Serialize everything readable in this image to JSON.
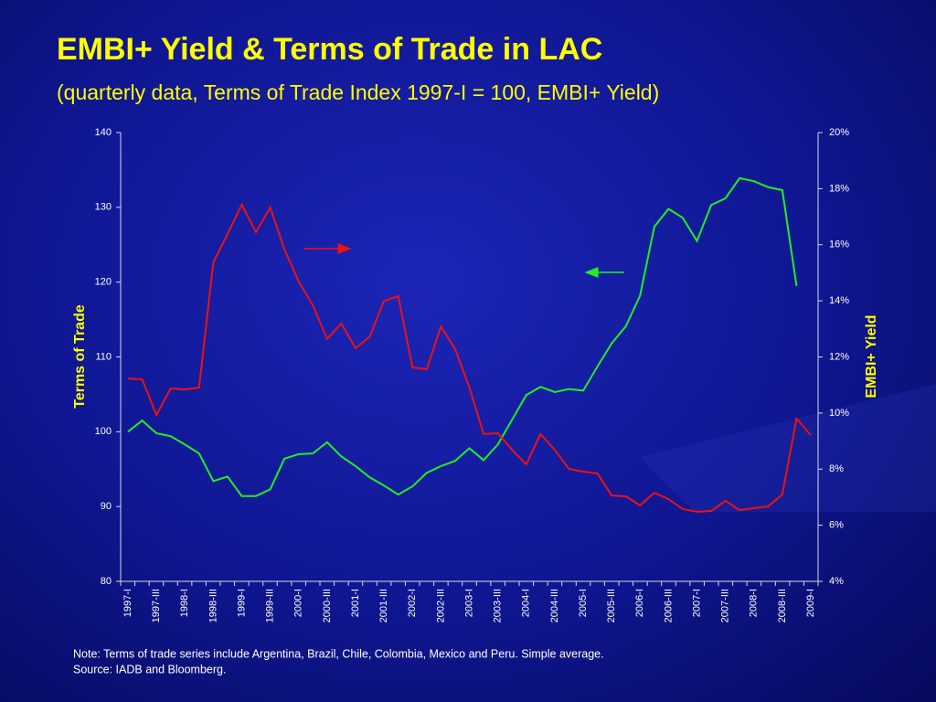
{
  "chart_data": {
    "type": "line",
    "title": "EMBI+ Yield & Terms of Trade in LAC",
    "subtitle": "(quarterly data, Terms of Trade Index 1997-I = 100, EMBI+ Yield)",
    "ylabel": "Terms of Trade",
    "y2label": "EMBI+ Yield",
    "note": "Note: Terms of trade series include Argentina, Brazil, Chile, Colombia, Mexico and Peru. Simple average.",
    "source": "Source: IADB and Bloomberg.",
    "categories": [
      "1997-I",
      null,
      "1997-III",
      null,
      "1998-I",
      null,
      "1998-III",
      null,
      "1999-I",
      null,
      "1999-III",
      null,
      "2000-I",
      null,
      "2000-III",
      null,
      "2001-I",
      null,
      "2001-III",
      null,
      "2002-I",
      null,
      "2002-III",
      null,
      "2003-I",
      null,
      "2003-III",
      null,
      "2004-I",
      null,
      "2004-III",
      null,
      "2005-I",
      null,
      "2005-III",
      null,
      "2006-I",
      null,
      "2006-III",
      null,
      "2007-I",
      null,
      "2007-III",
      null,
      "2008-I",
      null,
      "2008-III",
      null,
      "2009-I"
    ],
    "ylim": [
      80,
      140
    ],
    "yticks": [
      80,
      90,
      100,
      110,
      120,
      130,
      140
    ],
    "y2lim": [
      4,
      20
    ],
    "y2ticks": [
      {
        "value": 4,
        "label": "4%"
      },
      {
        "value": 6,
        "label": "6%"
      },
      {
        "value": 8,
        "label": "8%"
      },
      {
        "value": 10,
        "label": "10%"
      },
      {
        "value": 12,
        "label": "12%"
      },
      {
        "value": 14,
        "label": "14%"
      },
      {
        "value": 16,
        "label": "16%"
      },
      {
        "value": 18,
        "label": "18%"
      },
      {
        "value": 20,
        "label": "20%"
      }
    ],
    "series": [
      {
        "color": "#22ee22",
        "values": [
          100.0,
          101.5,
          99.8,
          99.4,
          98.3,
          97.1,
          93.4,
          94.0,
          91.4,
          91.4,
          92.3,
          96.4,
          97.0,
          97.1,
          98.6,
          96.7,
          95.4,
          93.9,
          92.8,
          91.6,
          92.7,
          94.5,
          95.4,
          96.1,
          97.8,
          96.2,
          98.3,
          101.6,
          104.9,
          106.0,
          105.3,
          105.7,
          105.5,
          108.7,
          111.8,
          114.1,
          118.2,
          127.4,
          129.8,
          128.6,
          125.5,
          130.3,
          131.2,
          133.9,
          133.5,
          132.7,
          132.3,
          119.5,
          null
        ]
      },
      {
        "color": "#ee1111",
        "axis": "y2",
        "values": [
          11.23,
          11.2,
          9.93,
          10.88,
          10.84,
          10.91,
          15.37,
          16.38,
          17.43,
          16.45,
          17.33,
          15.83,
          14.69,
          13.84,
          12.64,
          13.19,
          12.31,
          12.73,
          14.0,
          14.17,
          11.63,
          11.56,
          13.09,
          12.28,
          10.91,
          9.25,
          9.28,
          8.69,
          8.17,
          9.25,
          8.69,
          8.01,
          7.91,
          7.85,
          7.06,
          7.03,
          6.71,
          7.16,
          6.93,
          6.58,
          6.48,
          6.51,
          6.87,
          6.54,
          6.61,
          6.67,
          7.1,
          9.8,
          9.21
        ]
      }
    ]
  }
}
